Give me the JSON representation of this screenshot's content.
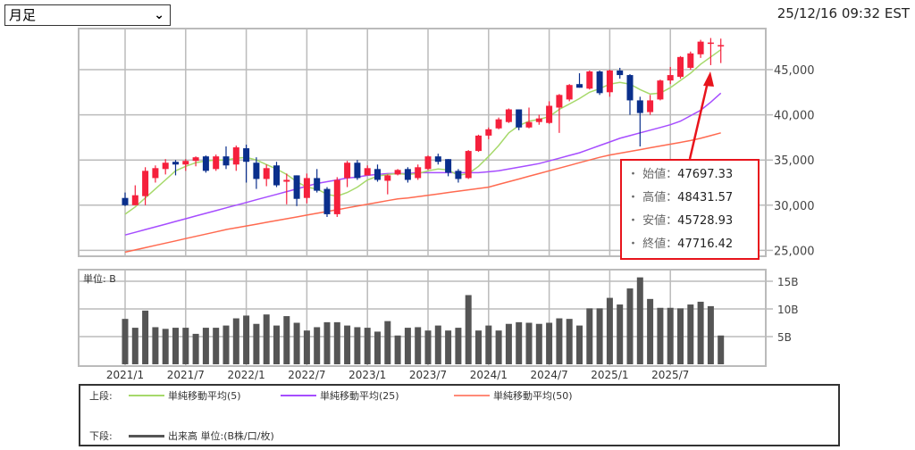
{
  "period_select": {
    "value": "月足"
  },
  "timestamp": "25/12/16 09:32 EST",
  "tooltip": [
    {
      "label": "始値",
      "value": "47697.33"
    },
    {
      "label": "高値",
      "value": "48431.57"
    },
    {
      "label": "安値",
      "value": "45728.93"
    },
    {
      "label": "終値",
      "value": "47716.42"
    }
  ],
  "legend": {
    "upper_label": "上段:",
    "lower_label": "下段:",
    "ma5": "単純移動平均(5)",
    "ma25": "単純移動平均(25)",
    "ma50": "単純移動平均(50)",
    "volume": "出来高 単位:(B株/口/枚)"
  },
  "colors": {
    "up": "#f5203c",
    "down": "#0a2f8c",
    "ma5": "#a6d96a",
    "ma25": "#a64dff",
    "ma50": "#ff6a50",
    "volume": "#555555",
    "tooltip_border": "#e8141c"
  },
  "chart_data": [
    {
      "type": "candlestick",
      "ylim": [
        24500,
        49500
      ],
      "yticks": [
        "45,000",
        "40,000",
        "35,000",
        "30,000",
        "25,000"
      ],
      "ytick_values": [
        45000,
        40000,
        35000,
        30000,
        25000
      ],
      "grid": true,
      "x_start": "2021/1",
      "interval": "month",
      "ohlc": [
        [
          30800,
          31400,
          29900,
          30000
        ],
        [
          30000,
          32200,
          30000,
          31100
        ],
        [
          31000,
          34200,
          30000,
          33800
        ],
        [
          33000,
          34400,
          32500,
          34100
        ],
        [
          34000,
          35100,
          33400,
          34700
        ],
        [
          34800,
          35000,
          33300,
          34500
        ],
        [
          34500,
          35100,
          33800,
          34900
        ],
        [
          34900,
          35400,
          34300,
          35300
        ],
        [
          35400,
          35500,
          33600,
          33800
        ],
        [
          34000,
          35600,
          33800,
          35400
        ],
        [
          35400,
          36500,
          34000,
          34400
        ],
        [
          34500,
          36600,
          33800,
          36400
        ],
        [
          36300,
          36700,
          32500,
          34800
        ],
        [
          34700,
          35300,
          31800,
          32900
        ],
        [
          32900,
          34500,
          32100,
          34100
        ],
        [
          34400,
          34800,
          32000,
          32200
        ],
        [
          32600,
          33500,
          30100,
          32800
        ],
        [
          33300,
          33300,
          29900,
          30700
        ],
        [
          30800,
          33500,
          30200,
          33000
        ],
        [
          33000,
          34000,
          31400,
          31600
        ],
        [
          31800,
          32000,
          28700,
          29000
        ],
        [
          29000,
          33100,
          28700,
          32800
        ],
        [
          33000,
          34900,
          32000,
          34700
        ],
        [
          34700,
          35000,
          32800,
          33000
        ],
        [
          33300,
          34400,
          33300,
          34100
        ],
        [
          34000,
          34500,
          32600,
          32800
        ],
        [
          32700,
          33400,
          31200,
          33300
        ],
        [
          33400,
          34000,
          33300,
          33900
        ],
        [
          34000,
          34200,
          32500,
          32800
        ],
        [
          33000,
          34500,
          32800,
          34200
        ],
        [
          34000,
          35500,
          33900,
          35400
        ],
        [
          35400,
          35700,
          34500,
          34800
        ],
        [
          35100,
          35100,
          33200,
          33600
        ],
        [
          33800,
          34000,
          32500,
          32900
        ],
        [
          33000,
          36100,
          32900,
          36000
        ],
        [
          36000,
          37800,
          35900,
          37700
        ],
        [
          37700,
          38600,
          37300,
          38400
        ],
        [
          38500,
          39700,
          38400,
          39500
        ],
        [
          39200,
          40700,
          39100,
          40600
        ],
        [
          40600,
          40600,
          38300,
          38600
        ],
        [
          38600,
          40800,
          38500,
          39200
        ],
        [
          39200,
          40000,
          38900,
          39600
        ],
        [
          39100,
          41500,
          39000,
          41000
        ],
        [
          40800,
          42300,
          38000,
          42200
        ],
        [
          41700,
          43400,
          41500,
          43300
        ],
        [
          43400,
          44600,
          43000,
          43000
        ],
        [
          42900,
          44900,
          42800,
          44800
        ],
        [
          44800,
          44900,
          42200,
          42400
        ],
        [
          42500,
          45000,
          42000,
          44900
        ],
        [
          44900,
          45200,
          44000,
          44400
        ],
        [
          44400,
          44500,
          40000,
          41600
        ],
        [
          41600,
          42000,
          36500,
          40200
        ],
        [
          40300,
          42200,
          40000,
          41600
        ],
        [
          41700,
          43900,
          41600,
          43800
        ],
        [
          43800,
          45300,
          43400,
          44400
        ],
        [
          44200,
          46500,
          44000,
          46400
        ],
        [
          45200,
          47000,
          45000,
          46800
        ],
        [
          46700,
          48300,
          46300,
          48100
        ],
        [
          47900,
          48500,
          45500,
          48000
        ],
        [
          47697.33,
          48431.57,
          45728.93,
          47716.42
        ]
      ],
      "ma5": [
        29000,
        29800,
        30800,
        31800,
        32800,
        33800,
        34300,
        34700,
        34900,
        35000,
        35000,
        35200,
        35300,
        35000,
        34500,
        34000,
        33400,
        32600,
        32000,
        31800,
        31200,
        31000,
        31400,
        32000,
        32800,
        33200,
        33400,
        33500,
        33400,
        33500,
        33800,
        34000,
        33900,
        33300,
        33500,
        34300,
        35400,
        36600,
        38000,
        38800,
        39300,
        39500,
        39800,
        40600,
        41200,
        41800,
        42500,
        42900,
        43400,
        43600,
        43400,
        42800,
        42300,
        42400,
        43000,
        43800,
        44600,
        45600,
        46400,
        47200
      ],
      "ma25": [
        26700,
        27000,
        27300,
        27600,
        27900,
        28200,
        28500,
        28800,
        29100,
        29400,
        29700,
        30000,
        30300,
        30600,
        30900,
        31200,
        31500,
        31800,
        32100,
        32400,
        32600,
        32800,
        33000,
        33100,
        33300,
        33400,
        33500,
        33500,
        33500,
        33600,
        33600,
        33600,
        33600,
        33600,
        33600,
        33600,
        33700,
        33800,
        34000,
        34200,
        34400,
        34600,
        34900,
        35200,
        35500,
        35800,
        36200,
        36600,
        37000,
        37400,
        37700,
        38000,
        38300,
        38600,
        38900,
        39300,
        39900,
        40500,
        41400,
        42400
      ],
      "ma50": [
        24800,
        25050,
        25300,
        25550,
        25800,
        26050,
        26300,
        26550,
        26800,
        27050,
        27300,
        27500,
        27700,
        27900,
        28100,
        28300,
        28500,
        28700,
        28900,
        29100,
        29300,
        29500,
        29700,
        29900,
        30100,
        30300,
        30500,
        30700,
        30800,
        30950,
        31100,
        31250,
        31400,
        31550,
        31700,
        31850,
        32000,
        32300,
        32600,
        32900,
        33200,
        33500,
        33800,
        34100,
        34400,
        34700,
        35000,
        35300,
        35550,
        35750,
        35950,
        36150,
        36350,
        36550,
        36750,
        36950,
        37150,
        37400,
        37700,
        38000
      ]
    },
    {
      "type": "bar",
      "unit_label": "単位: B",
      "yticks": [
        "15B",
        "10B",
        "5B"
      ],
      "ytick_values": [
        15,
        10,
        5
      ],
      "grid": true,
      "xticks": [
        "2021/1",
        "2021/7",
        "2022/1",
        "2022/7",
        "2023/1",
        "2023/7",
        "2024/1",
        "2024/7",
        "2025/1",
        "2025/7"
      ],
      "values": [
        8.2,
        6.6,
        9.7,
        6.7,
        6.4,
        6.6,
        6.6,
        5.5,
        6.6,
        6.6,
        7.0,
        8.3,
        8.8,
        7.3,
        9.0,
        7.0,
        8.7,
        7.5,
        6.1,
        6.7,
        7.6,
        7.6,
        7.0,
        6.7,
        6.6,
        5.9,
        7.8,
        5.2,
        6.6,
        6.7,
        6.1,
        7.0,
        6.1,
        6.6,
        12.5,
        6.1,
        7.0,
        6.1,
        7.3,
        7.6,
        7.5,
        7.3,
        7.5,
        8.3,
        8.2,
        7.0,
        10.1,
        10.1,
        12.0,
        10.8,
        13.7,
        15.7,
        11.8,
        10.2,
        10.2,
        10.1,
        10.8,
        11.3,
        10.5,
        5.2
      ]
    }
  ]
}
